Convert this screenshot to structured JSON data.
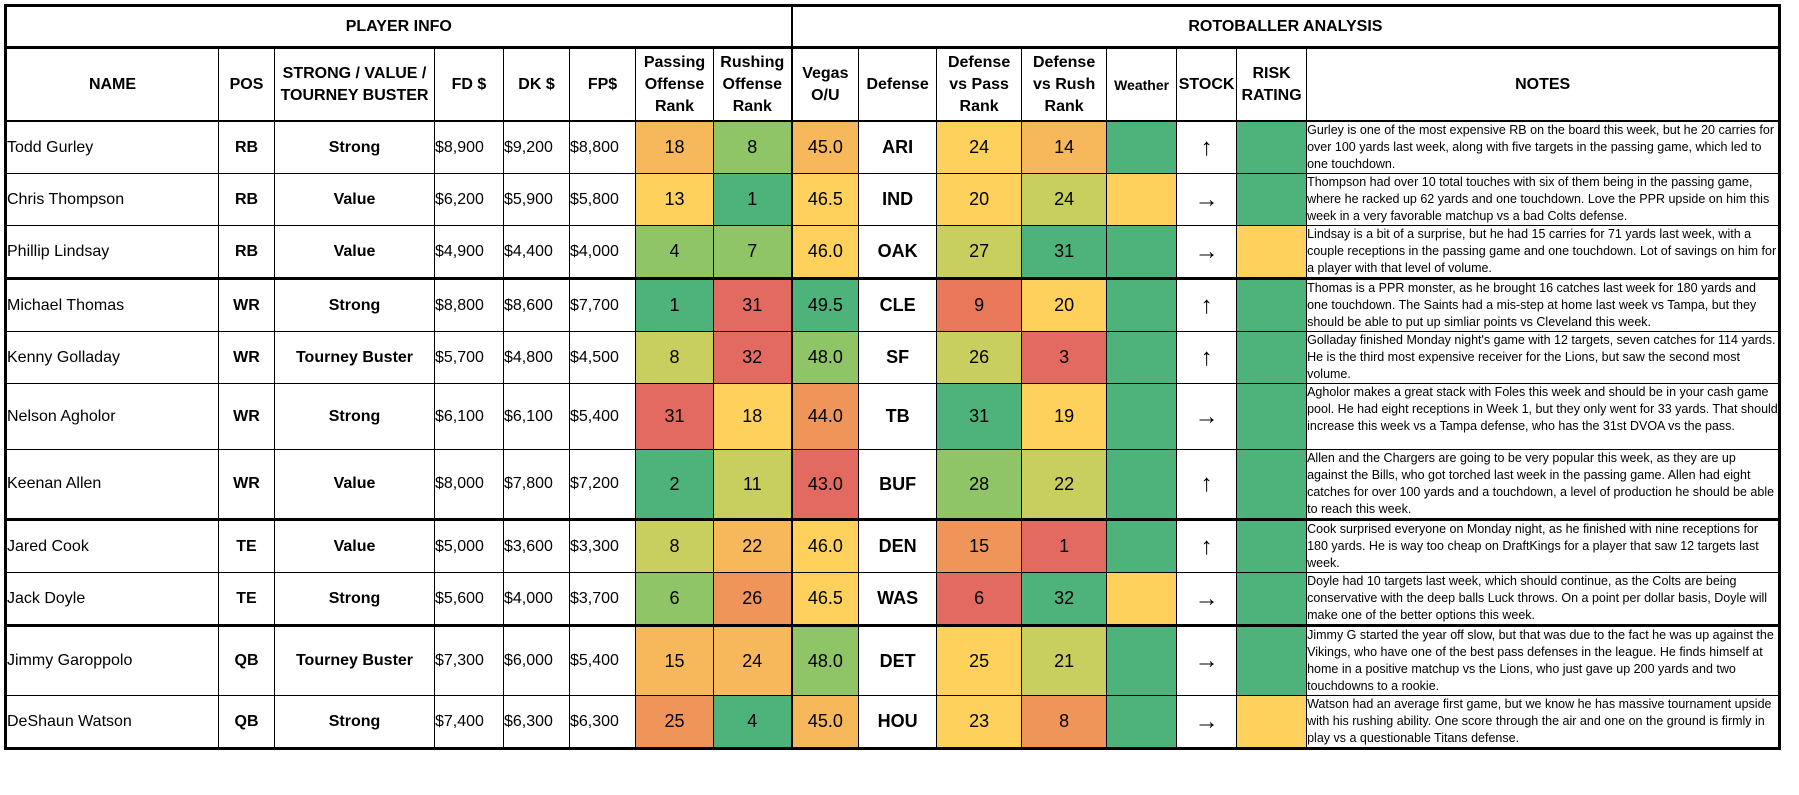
{
  "sections": {
    "left": "PLAYER INFO",
    "right": "ROTOBALLER ANALYSIS"
  },
  "headers": {
    "name": "NAME",
    "pos": "POS",
    "tier_l1": "STRONG / VALUE /",
    "tier_l2": "TOURNEY BUSTER",
    "fd": "FD $",
    "dk": "DK $",
    "fp": "FP$",
    "pass_off_l1": "Passing",
    "pass_off_l2": "Offense",
    "pass_off_l3": "Rank",
    "rush_off_l1": "Rushing",
    "rush_off_l2": "Offense",
    "rush_off_l3": "Rank",
    "vegas_l1": "Vegas",
    "vegas_l2": "O/U",
    "defense": "Defense",
    "def_pass_l1": "Defense",
    "def_pass_l2": "vs Pass",
    "def_pass_l3": "Rank",
    "def_rush_l1": "Defense",
    "def_rush_l2": "vs Rush",
    "def_rush_l3": "Rank",
    "weather": "Weather",
    "stock": "STOCK",
    "risk_l1": "RISK",
    "risk_l2": "RATING",
    "notes": "NOTES"
  },
  "colors": {
    "green": "#4db37a",
    "green_yellow": "#8fc467",
    "yellow_green": "#c8cf5f",
    "yellow": "#fdd15c",
    "light_orange": "#f6b85b",
    "orange": "#ef9559",
    "red_orange": "#e9785b",
    "red": "#e26a61"
  },
  "icons": {
    "up": "↑",
    "right": "→"
  },
  "rows": [
    {
      "name": "Todd Gurley",
      "pos": "RB",
      "tier": "Strong",
      "fd": "$8,900",
      "dk": "$9,200",
      "fp": "$8,800",
      "pass_off": "18",
      "pass_off_c": "#f6b85b",
      "rush_off": "8",
      "rush_off_c": "#8fc467",
      "vegas": "45.0",
      "vegas_c": "#f6b85b",
      "defense": "ARI",
      "def_pass": "24",
      "def_pass_c": "#fdd15c",
      "def_rush": "14",
      "def_rush_c": "#f6b85b",
      "weather_c": "#4db37a",
      "stock": "↑",
      "stock_icon": "up-arrow-icon",
      "risk_c": "#4db37a",
      "notes": "Gurley is one of the most expensive RB on the board this week, but he 20 carries for over 100 yards last week, along with five targets in the passing game, which led to one touchdown.",
      "group_start": false
    },
    {
      "name": "Chris Thompson",
      "pos": "RB",
      "tier": "Value",
      "fd": "$6,200",
      "dk": "$5,900",
      "fp": "$5,800",
      "pass_off": "13",
      "pass_off_c": "#fdd15c",
      "rush_off": "1",
      "rush_off_c": "#4db37a",
      "vegas": "46.5",
      "vegas_c": "#fdd15c",
      "defense": "IND",
      "def_pass": "20",
      "def_pass_c": "#fdd15c",
      "def_rush": "24",
      "def_rush_c": "#c8cf5f",
      "weather_c": "#fdd15c",
      "stock": "→",
      "stock_icon": "right-arrow-icon",
      "risk_c": "#4db37a",
      "notes": "Thompson had over 10 total touches with six of them being in the passing game, where he racked up 62 yards and one touchdown. Love the PPR upside on him this week in a very favorable matchup vs a bad Colts defense.",
      "group_start": false
    },
    {
      "name": "Phillip Lindsay",
      "pos": "RB",
      "tier": "Value",
      "fd": "$4,900",
      "dk": "$4,400",
      "fp": "$4,000",
      "pass_off": "4",
      "pass_off_c": "#8fc467",
      "rush_off": "7",
      "rush_off_c": "#8fc467",
      "vegas": "46.0",
      "vegas_c": "#fdd15c",
      "defense": "OAK",
      "def_pass": "27",
      "def_pass_c": "#c8cf5f",
      "def_rush": "31",
      "def_rush_c": "#4db37a",
      "weather_c": "#4db37a",
      "stock": "→",
      "stock_icon": "right-arrow-icon",
      "risk_c": "#fdd15c",
      "notes": "Lindsay is a bit of a surprise, but he had 15 carries for 71 yards last week, with a couple receptions in the passing game and one touchdown. Lot of savings on him for a player with that level of volume.",
      "group_start": false
    },
    {
      "name": "Michael Thomas",
      "pos": "WR",
      "tier": "Strong",
      "fd": "$8,800",
      "dk": "$8,600",
      "fp": "$7,700",
      "pass_off": "1",
      "pass_off_c": "#4db37a",
      "rush_off": "31",
      "rush_off_c": "#e26a61",
      "vegas": "49.5",
      "vegas_c": "#4db37a",
      "defense": "CLE",
      "def_pass": "9",
      "def_pass_c": "#e9785b",
      "def_rush": "20",
      "def_rush_c": "#fdd15c",
      "weather_c": "#4db37a",
      "stock": "↑",
      "stock_icon": "up-arrow-icon",
      "risk_c": "#4db37a",
      "notes": "Thomas is a PPR monster, as he brought 16 catches last week for 180 yards and one touchdown. The Saints had a mis-step at home last week vs Tampa, but they should be able to put up simliar points vs Cleveland this week.",
      "group_start": true
    },
    {
      "name": "Kenny Golladay",
      "pos": "WR",
      "tier": "Tourney Buster",
      "fd": "$5,700",
      "dk": "$4,800",
      "fp": "$4,500",
      "pass_off": "8",
      "pass_off_c": "#c8cf5f",
      "rush_off": "32",
      "rush_off_c": "#e26a61",
      "vegas": "48.0",
      "vegas_c": "#8fc467",
      "defense": "SF",
      "def_pass": "26",
      "def_pass_c": "#c8cf5f",
      "def_rush": "3",
      "def_rush_c": "#e26a61",
      "weather_c": "#4db37a",
      "stock": "↑",
      "stock_icon": "up-arrow-icon",
      "risk_c": "#4db37a",
      "notes": "Golladay finished Monday night's game with 12 targets, seven catches for 114 yards. He is the third most expensive receiver for the Lions, but saw the second most volume.",
      "group_start": false
    },
    {
      "name": "Nelson Agholor",
      "pos": "WR",
      "tier": "Strong",
      "fd": "$6,100",
      "dk": "$6,100",
      "fp": "$5,400",
      "pass_off": "31",
      "pass_off_c": "#e26a61",
      "rush_off": "18",
      "rush_off_c": "#fdd15c",
      "vegas": "44.0",
      "vegas_c": "#ef9559",
      "defense": "TB",
      "def_pass": "31",
      "def_pass_c": "#4db37a",
      "def_rush": "19",
      "def_rush_c": "#fdd15c",
      "weather_c": "#4db37a",
      "stock": "→",
      "stock_icon": "right-arrow-icon",
      "risk_c": "#4db37a",
      "notes": "Agholor makes a great stack with Foles this week and should be in your cash game pool. He had eight receptions in Week 1, but they only went for 33 yards. That should increase this week vs a Tampa defense, who has the 31st DVOA vs the pass.",
      "group_start": false
    },
    {
      "name": "Keenan Allen",
      "pos": "WR",
      "tier": "Value",
      "fd": "$8,000",
      "dk": "$7,800",
      "fp": "$7,200",
      "pass_off": "2",
      "pass_off_c": "#4db37a",
      "rush_off": "11",
      "rush_off_c": "#c8cf5f",
      "vegas": "43.0",
      "vegas_c": "#e26a61",
      "defense": "BUF",
      "def_pass": "28",
      "def_pass_c": "#8fc467",
      "def_rush": "22",
      "def_rush_c": "#c8cf5f",
      "weather_c": "#4db37a",
      "stock": "↑",
      "stock_icon": "up-arrow-icon",
      "risk_c": "#4db37a",
      "notes": "Allen and the Chargers are going to be very popular this week, as they are up against the Bills, who got torched last week in the passing game. Allen had eight catches for over 100 yards and a touchdown, a level of production he should be able to reach this week.",
      "group_start": false
    },
    {
      "name": "Jared Cook",
      "pos": "TE",
      "tier": "Value",
      "fd": "$5,000",
      "dk": "$3,600",
      "fp": "$3,300",
      "pass_off": "8",
      "pass_off_c": "#c8cf5f",
      "rush_off": "22",
      "rush_off_c": "#f6b85b",
      "vegas": "46.0",
      "vegas_c": "#fdd15c",
      "defense": "DEN",
      "def_pass": "15",
      "def_pass_c": "#ef9559",
      "def_rush": "1",
      "def_rush_c": "#e26a61",
      "weather_c": "#4db37a",
      "stock": "↑",
      "stock_icon": "up-arrow-icon",
      "risk_c": "#4db37a",
      "notes": "Cook surprised everyone on Monday night, as he finished with nine receptions for 180 yards. He is way too cheap on DraftKings for a player that saw 12 targets last week.",
      "group_start": true
    },
    {
      "name": "Jack Doyle",
      "pos": "TE",
      "tier": "Strong",
      "fd": "$5,600",
      "dk": "$4,000",
      "fp": "$3,700",
      "pass_off": "6",
      "pass_off_c": "#8fc467",
      "rush_off": "26",
      "rush_off_c": "#ef9559",
      "vegas": "46.5",
      "vegas_c": "#fdd15c",
      "defense": "WAS",
      "def_pass": "6",
      "def_pass_c": "#e26a61",
      "def_rush": "32",
      "def_rush_c": "#4db37a",
      "weather_c": "#fdd15c",
      "stock": "→",
      "stock_icon": "right-arrow-icon",
      "risk_c": "#4db37a",
      "notes": "Doyle had 10 targets last week, which should continue, as the Colts are being conservative with the deep balls Luck throws. On a point per dollar basis, Doyle will make one of the better options this week.",
      "group_start": false
    },
    {
      "name": "Jimmy Garoppolo",
      "pos": "QB",
      "tier": "Tourney Buster",
      "fd": "$7,300",
      "dk": "$6,000",
      "fp": "$5,400",
      "pass_off": "15",
      "pass_off_c": "#f6b85b",
      "rush_off": "24",
      "rush_off_c": "#f6b85b",
      "vegas": "48.0",
      "vegas_c": "#8fc467",
      "defense": "DET",
      "def_pass": "25",
      "def_pass_c": "#fdd15c",
      "def_rush": "21",
      "def_rush_c": "#c8cf5f",
      "weather_c": "#4db37a",
      "stock": "→",
      "stock_icon": "right-arrow-icon",
      "risk_c": "#4db37a",
      "notes": "Jimmy G started the year off slow, but that was due to the fact he was up against the Vikings, who have one of the best pass defenses in the league. He finds himself at home in a positive matchup vs the Lions, who just gave up 200 yards and two touchdowns to a rookie.",
      "group_start": true
    },
    {
      "name": "DeShaun Watson",
      "pos": "QB",
      "tier": "Strong",
      "fd": "$7,400",
      "dk": "$6,300",
      "fp": "$6,300",
      "pass_off": "25",
      "pass_off_c": "#ef9559",
      "rush_off": "4",
      "rush_off_c": "#4db37a",
      "vegas": "45.0",
      "vegas_c": "#f6b85b",
      "defense": "HOU",
      "def_pass": "23",
      "def_pass_c": "#fdd15c",
      "def_rush": "8",
      "def_rush_c": "#ef9559",
      "weather_c": "#4db37a",
      "stock": "→",
      "stock_icon": "right-arrow-icon",
      "risk_c": "#fdd15c",
      "notes": "Watson had an average first game, but we know he has massive tournament upside with his rushing ability. One score through the air and one on the ground is firmly in play vs a questionable Titans defense.",
      "group_start": false
    }
  ]
}
